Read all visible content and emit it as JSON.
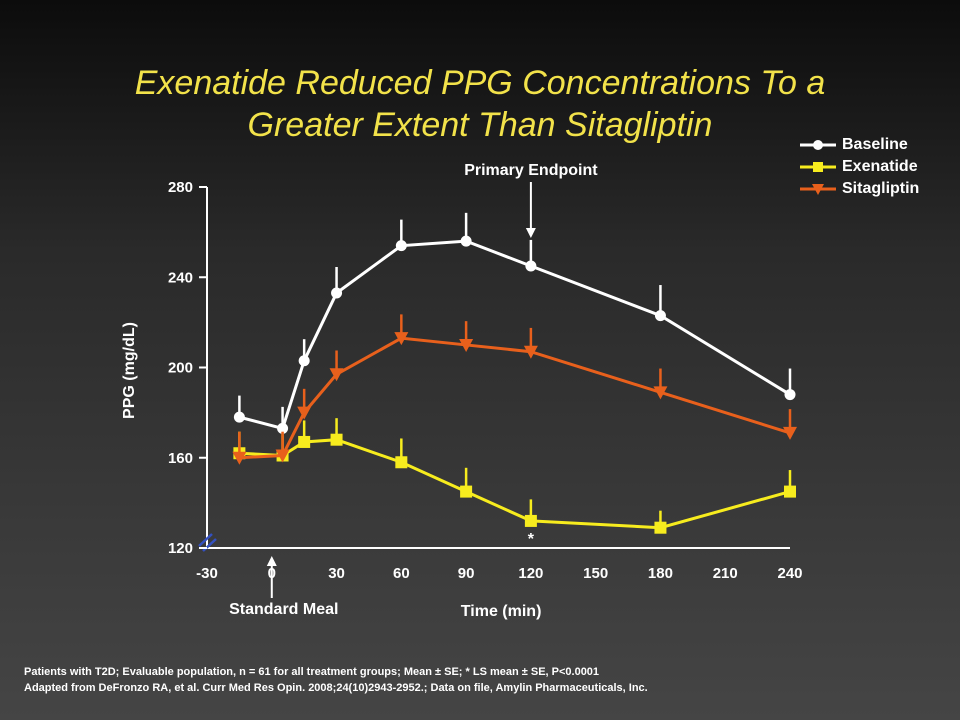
{
  "title": {
    "line1": "Exenatide Reduced PPG Concentrations To a",
    "line2": "Greater Extent Than Sitagliptin"
  },
  "colors": {
    "baseline": "#ffffff",
    "exenatide": "#f7ec1e",
    "sitagliptin": "#e8601c",
    "title": "#f2e24a",
    "axisBreak": "#3350c0"
  },
  "chart_data": {
    "type": "line",
    "title": "Exenatide Reduced PPG Concentrations To a Greater Extent Than Sitagliptin",
    "xlabel": "Time (min)",
    "ylabel": "PPG (mg/dL)",
    "xlim": [
      -30,
      240
    ],
    "ylim": [
      120,
      280
    ],
    "xticks": [
      "-30",
      "0",
      "30",
      "60",
      "90",
      "120",
      "150",
      "180",
      "210",
      "240"
    ],
    "yticks": [
      "120",
      "160",
      "200",
      "240",
      "280"
    ],
    "series": [
      {
        "name": "Baseline",
        "marker": "circle",
        "x": [
          -15,
          5,
          15,
          30,
          60,
          90,
          120,
          180,
          240
        ],
        "y": [
          178,
          173,
          203,
          233,
          254,
          256,
          245,
          223,
          188
        ],
        "err": [
          6,
          6,
          6,
          8,
          8,
          9,
          8,
          10,
          8
        ]
      },
      {
        "name": "Exenatide",
        "marker": "square",
        "x": [
          -15,
          5,
          15,
          30,
          60,
          90,
          120,
          180,
          240
        ],
        "y": [
          162,
          161,
          167,
          168,
          158,
          145,
          132,
          129,
          145
        ],
        "err": [
          6,
          6,
          6,
          6,
          7,
          7,
          6,
          4,
          6
        ]
      },
      {
        "name": "Sitagliptin",
        "marker": "triangle-down",
        "x": [
          -15,
          5,
          15,
          30,
          60,
          90,
          120,
          180,
          240
        ],
        "y": [
          160,
          161,
          180,
          197,
          213,
          210,
          207,
          189,
          171
        ],
        "err": [
          8,
          7,
          7,
          7,
          7,
          7,
          7,
          7,
          7
        ]
      }
    ],
    "annotations": [
      {
        "text": "Primary Endpoint",
        "x": 120
      },
      {
        "text": "Standard Meal",
        "x": 0
      },
      {
        "text": "*",
        "x": 120
      }
    ],
    "legend": "top-right"
  },
  "legend_labels": [
    "Baseline",
    "Exenatide",
    "Sitagliptin"
  ],
  "footnote": {
    "line1": "Patients with T2D; Evaluable population,  n = 61 for all treatment  groups; Mean ± SE; * LS mean ± SE, P<0.0001",
    "line2": "Adapted from DeFronzo RA, et al. Curr Med Res Opin. 2008;24(10)2943-2952.;  Data on file, Amylin Pharmaceuticals, Inc."
  }
}
